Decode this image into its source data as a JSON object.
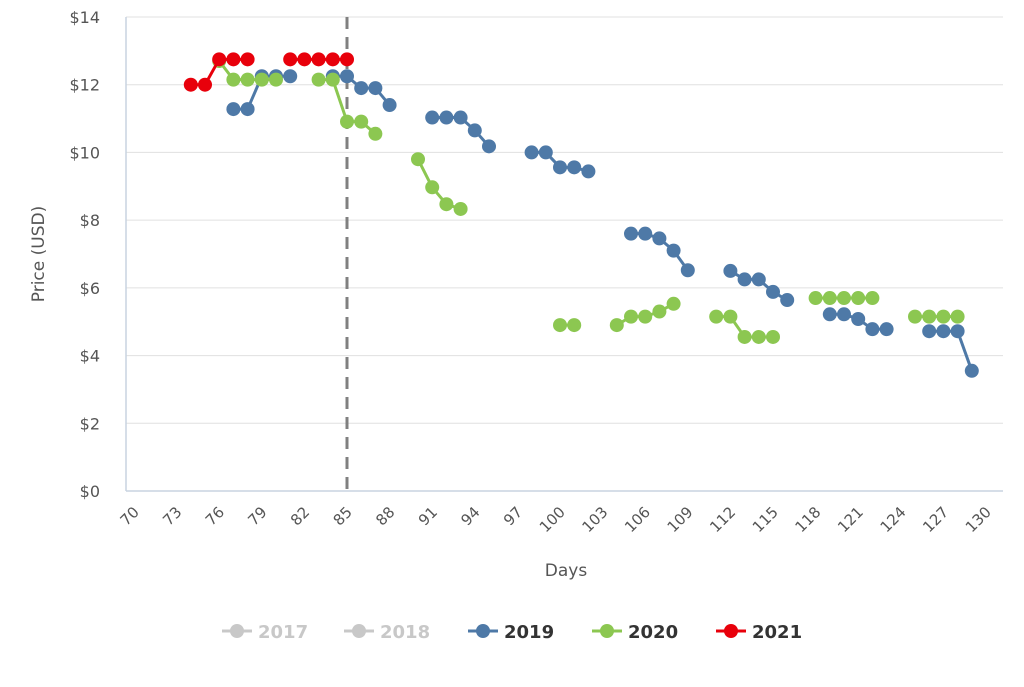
{
  "chart_data": {
    "type": "line",
    "xlabel": "Days",
    "ylabel": "Price (USD)",
    "xlim": [
      70,
      130
    ],
    "ylim": [
      0,
      14
    ],
    "xticks": [
      70,
      73,
      76,
      79,
      82,
      85,
      88,
      91,
      94,
      97,
      100,
      103,
      106,
      109,
      112,
      115,
      118,
      121,
      124,
      127,
      130
    ],
    "yticks": [
      "$0",
      "$2",
      "$4",
      "$6",
      "$8",
      "$10",
      "$12",
      "$14"
    ],
    "grid": "horizontal",
    "legend_position": "bottom",
    "reference_line": {
      "x": 85,
      "style": "dashed",
      "color": "#808080"
    },
    "series": [
      {
        "name": "2017",
        "color": "#c8c8c8",
        "hidden": true,
        "points": []
      },
      {
        "name": "2018",
        "color": "#c8c8c8",
        "hidden": true,
        "points": []
      },
      {
        "name": "2019",
        "color": "#4e79a7",
        "points": [
          [
            77,
            11.28
          ],
          [
            78,
            11.28
          ],
          [
            79,
            12.25
          ],
          [
            80,
            12.25
          ],
          [
            81,
            12.25
          ],
          null,
          [
            84,
            12.25
          ],
          [
            85,
            12.25
          ],
          [
            86,
            11.9
          ],
          [
            87,
            11.9
          ],
          [
            88,
            11.4
          ],
          null,
          [
            91,
            11.03
          ],
          [
            92,
            11.03
          ],
          [
            93,
            11.03
          ],
          [
            94,
            10.65
          ],
          [
            95,
            10.18
          ],
          null,
          [
            98,
            10.0
          ],
          [
            99,
            10.0
          ],
          [
            100,
            9.56
          ],
          [
            101,
            9.56
          ],
          [
            102,
            9.44
          ],
          null,
          [
            105,
            7.6
          ],
          [
            106,
            7.6
          ],
          [
            107,
            7.46
          ],
          [
            108,
            7.1
          ],
          [
            109,
            6.52
          ],
          null,
          [
            112,
            6.5
          ],
          [
            113,
            6.25
          ],
          [
            114,
            6.25
          ],
          [
            115,
            5.88
          ],
          [
            116,
            5.64
          ],
          null,
          [
            119,
            5.22
          ],
          [
            120,
            5.22
          ],
          [
            121,
            5.08
          ],
          [
            122,
            4.78
          ],
          [
            123,
            4.78
          ],
          null,
          [
            126,
            4.72
          ],
          [
            127,
            4.72
          ],
          [
            128,
            4.72
          ],
          [
            129,
            3.55
          ]
        ]
      },
      {
        "name": "2020",
        "color": "#8cc751",
        "points": [
          [
            76,
            12.7
          ],
          [
            77,
            12.15
          ],
          [
            78,
            12.15
          ],
          [
            79,
            12.15
          ],
          [
            80,
            12.15
          ],
          null,
          [
            83,
            12.15
          ],
          [
            84,
            12.15
          ],
          [
            85,
            10.91
          ],
          [
            86,
            10.91
          ],
          [
            87,
            10.55
          ],
          null,
          [
            90,
            9.8
          ],
          [
            91,
            8.97
          ],
          [
            92,
            8.47
          ],
          [
            93,
            8.33
          ],
          null,
          [
            100,
            4.9
          ],
          [
            101,
            4.9
          ],
          null,
          [
            104,
            4.9
          ],
          [
            105,
            5.15
          ],
          [
            106,
            5.15
          ],
          [
            107,
            5.3
          ],
          [
            108,
            5.53
          ],
          null,
          [
            111,
            5.15
          ],
          [
            112,
            5.15
          ],
          [
            113,
            4.55
          ],
          [
            114,
            4.55
          ],
          [
            115,
            4.55
          ],
          null,
          [
            118,
            5.7
          ],
          [
            119,
            5.7
          ],
          [
            120,
            5.7
          ],
          [
            121,
            5.7
          ],
          [
            122,
            5.7
          ],
          null,
          [
            125,
            5.15
          ],
          [
            126,
            5.15
          ],
          [
            127,
            5.15
          ],
          [
            128,
            5.15
          ]
        ]
      },
      {
        "name": "2021",
        "color": "#e8000b",
        "points": [
          [
            74,
            12.0
          ],
          [
            75,
            12.0
          ],
          [
            76,
            12.75
          ],
          [
            77,
            12.75
          ],
          [
            78,
            12.75
          ],
          null,
          [
            81,
            12.75
          ],
          [
            82,
            12.75
          ],
          [
            83,
            12.75
          ],
          [
            84,
            12.75
          ],
          [
            85,
            12.75
          ]
        ]
      }
    ]
  }
}
